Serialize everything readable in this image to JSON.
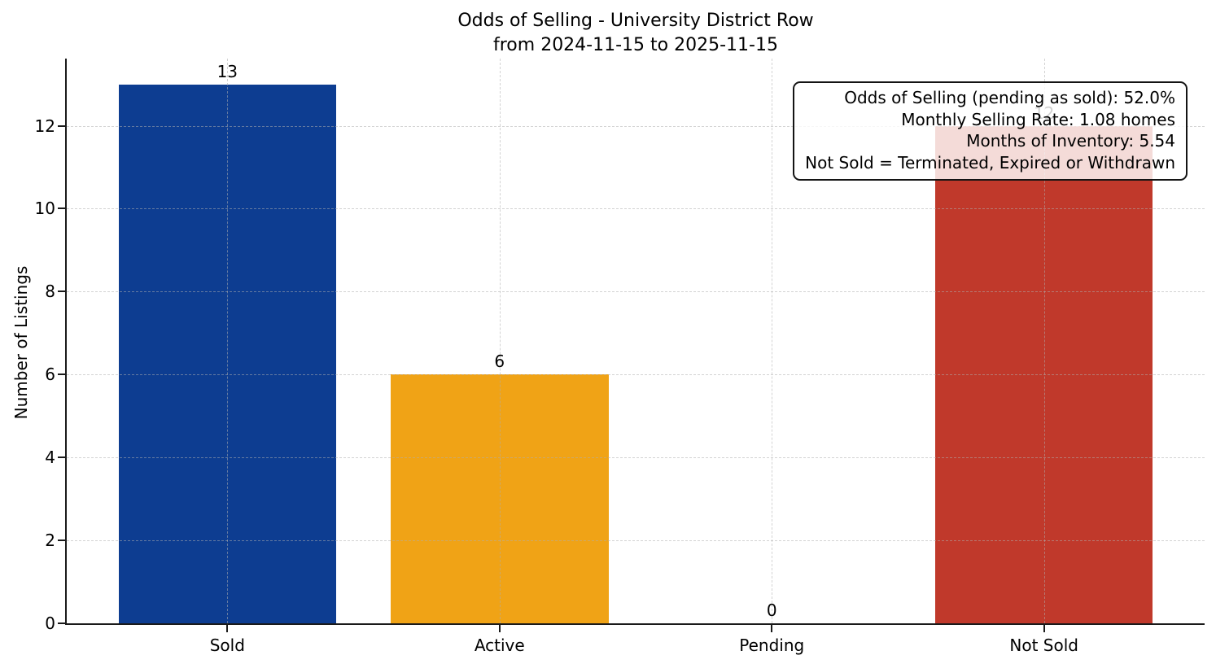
{
  "chart_data": {
    "type": "bar",
    "title": "Odds of Selling - University District Row",
    "subtitle": "from 2024-11-15 to 2025-11-15",
    "ylabel": "Number of Listings",
    "xlabel": "",
    "categories": [
      "Sold",
      "Active",
      "Pending",
      "Not Sold"
    ],
    "values": [
      13,
      6,
      0,
      12
    ],
    "bar_colors": [
      "#0d3d91",
      "#f0a316",
      "#999999",
      "#c0392b"
    ],
    "yticks": [
      0,
      2,
      4,
      6,
      8,
      10,
      12
    ],
    "ylim": [
      0,
      13.62
    ],
    "grid": "dashed, both axes, drawn above bars",
    "legend_position": "none",
    "annotation_box": {
      "position": "top-right",
      "lines": [
        "Odds of Selling (pending as sold): 52.0%",
        "Monthly Selling Rate: 1.08 homes",
        "Months of Inventory: 5.54",
        "Not Sold = Terminated, Expired or Withdrawn"
      ]
    },
    "colors": {
      "axis": "#1a1a1a",
      "grid": "#b0b0b0",
      "text": "#000000",
      "annotation_box_background": "rgba(255,255,255,0.82)",
      "annotation_box_border": "#141414"
    }
  }
}
